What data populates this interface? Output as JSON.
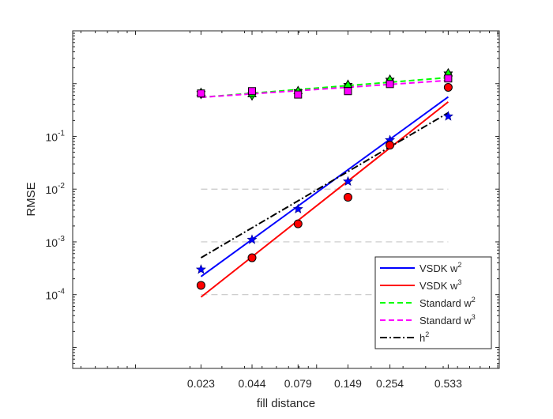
{
  "chart_data": {
    "type": "line",
    "title": "",
    "xlabel": "fill distance",
    "ylabel": "RMSE",
    "xscale": "log",
    "yscale": "log",
    "xlim": [
      0.0045,
      1.02
    ],
    "ylim": [
      4e-06,
      10
    ],
    "x_ticks": [
      0.023,
      0.044,
      0.079,
      0.149,
      0.254,
      0.533
    ],
    "x_tick_labels": [
      "0.023",
      "0.044",
      "0.079",
      "0.149",
      "0.254",
      "0.533"
    ],
    "y_ticks": [
      0.0001,
      0.001,
      0.01,
      0.1
    ],
    "y_tick_labels": [
      {
        "base": "10",
        "exp": "-4"
      },
      {
        "base": "10",
        "exp": "-3"
      },
      {
        "base": "10",
        "exp": "-2"
      },
      {
        "base": "10",
        "exp": "-1"
      }
    ],
    "grid": "dashed gray lines at y = 10^-4, 10^-3, 10^-2 between x = 0.023 and 0.533",
    "legend_position": "bottom-right",
    "legend": [
      {
        "text": "VSDK w",
        "sup": "2",
        "color": "#0000ff",
        "style": "solid"
      },
      {
        "text": "VSDK w",
        "sup": "3",
        "color": "#ff0000",
        "style": "solid"
      },
      {
        "text": "Standard w",
        "sup": "2",
        "color": "#00ff00",
        "style": "dashed"
      },
      {
        "text": "Standard w",
        "sup": "3",
        "color": "#ff00ff",
        "style": "dashed"
      },
      {
        "text": "h",
        "sup": "2",
        "color": "#000000",
        "style": "dashdot"
      }
    ],
    "series": [
      {
        "name": "VSDK w2",
        "color": "#0000ff",
        "style": "solid",
        "marker": "star",
        "x": [
          0.023,
          0.044,
          0.079,
          0.149,
          0.254,
          0.533
        ],
        "values": [
          0.0003,
          0.0011,
          0.0042,
          0.014,
          0.085,
          0.24
        ],
        "fit": [
          0.00022,
          0.56
        ]
      },
      {
        "name": "VSDK w3",
        "color": "#ff0000",
        "style": "solid",
        "marker": "circle",
        "x": [
          0.023,
          0.044,
          0.079,
          0.149,
          0.254,
          0.533
        ],
        "values": [
          0.00015,
          0.0005,
          0.0022,
          0.007,
          0.068,
          0.85
        ],
        "fit": [
          9e-05,
          0.45
        ]
      },
      {
        "name": "Standard w2",
        "color": "#00ff00",
        "style": "dashed",
        "marker": "triangle-down",
        "x": [
          0.023,
          0.044,
          0.079,
          0.149,
          0.254,
          0.533
        ],
        "values": [
          0.62,
          0.58,
          0.67,
          0.88,
          1.1,
          1.45
        ],
        "fit": [
          0.55,
          1.3
        ]
      },
      {
        "name": "Standard w3",
        "color": "#ff00ff",
        "style": "dashed",
        "marker": "square",
        "x": [
          0.023,
          0.044,
          0.079,
          0.149,
          0.254,
          0.533
        ],
        "values": [
          0.65,
          0.72,
          0.62,
          0.72,
          0.98,
          1.25
        ],
        "fit": [
          0.55,
          1.15
        ]
      },
      {
        "name": "h2",
        "color": "#000000",
        "style": "dashdot",
        "marker": "none",
        "x": [
          0.023,
          0.533
        ],
        "values": [
          0.0005,
          0.28
        ]
      }
    ]
  }
}
